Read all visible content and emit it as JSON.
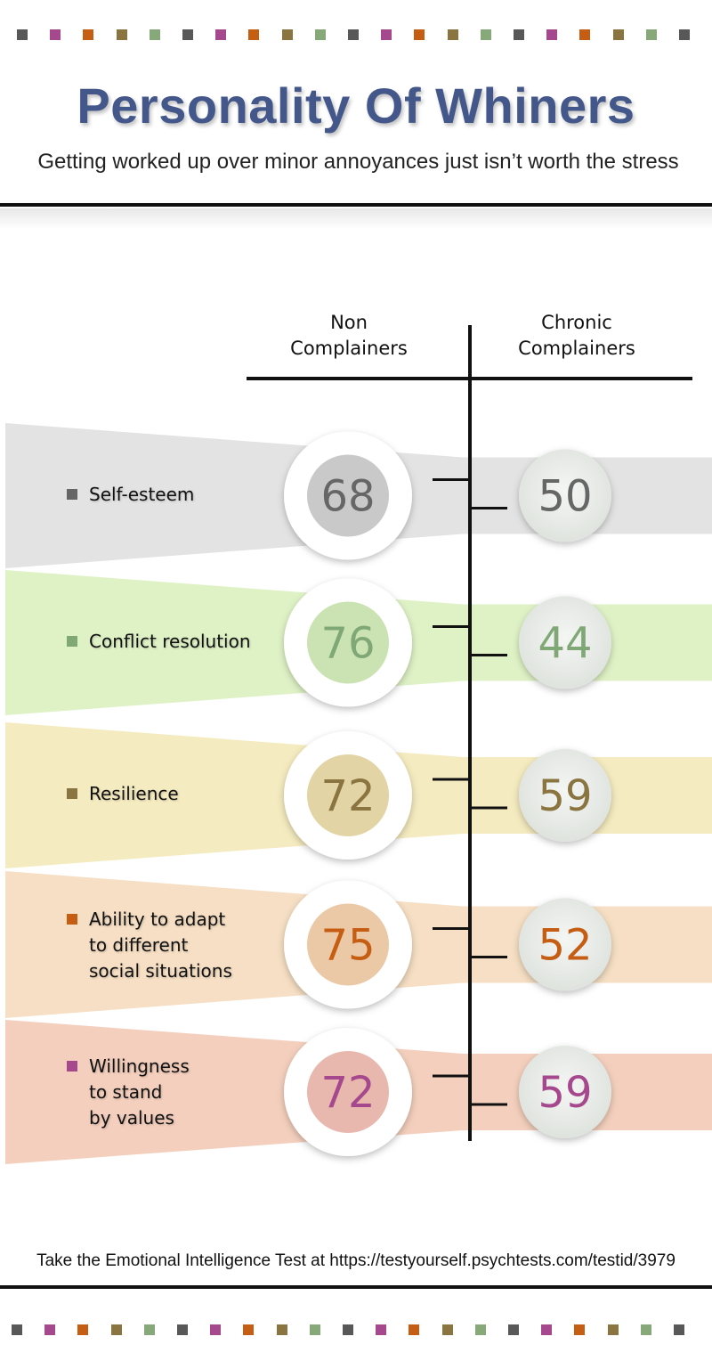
{
  "header": {
    "title": "Personality Of Whiners",
    "subtitle": "Getting worked up over minor annoyances just isn’t worth the stress"
  },
  "colors": {
    "dots": [
      "#585858",
      "#a6488e",
      "#c55d13",
      "#8a7440",
      "#87a97a",
      "#585858",
      "#a6488e",
      "#c55d13",
      "#8a7440",
      "#87a97a",
      "#585858",
      "#a6488e",
      "#c55d13",
      "#8a7440",
      "#87a97a",
      "#585858",
      "#a6488e",
      "#c55d13",
      "#8a7440",
      "#87a97a",
      "#585858"
    ]
  },
  "chart_data": {
    "type": "table",
    "columns": [
      "Non\nComplainers",
      "Chronic\nComplainers"
    ],
    "rows": [
      {
        "label": "Self-esteem",
        "non": "68",
        "chronic": "50",
        "color": "#666666",
        "band": "#e3e3e3",
        "inner": "#c9c9c9"
      },
      {
        "label": "Conflict resolution",
        "non": "76",
        "chronic": "44",
        "color": "#80a876",
        "band": "#dff2c6",
        "inner": "#cbe3b2"
      },
      {
        "label": "Resilience",
        "non": "72",
        "chronic": "59",
        "color": "#8a7440",
        "band": "#f5ebc0",
        "inner": "#e3d4a6"
      },
      {
        "label": "Ability to adapt\nto different\nsocial situations",
        "non": "75",
        "chronic": "52",
        "color": "#c55d13",
        "band": "#f6dfc4",
        "inner": "#ecc9a6"
      },
      {
        "label": "Willingness\nto stand\nby values",
        "non": "72",
        "chronic": "59",
        "color": "#a6488e",
        "band": "#f4cfbd",
        "inner": "#e8b8ae"
      }
    ]
  },
  "footer": {
    "text": "Take the Emotional Intelligence Test at https://testyourself.psychtests.com/testid/3979"
  }
}
